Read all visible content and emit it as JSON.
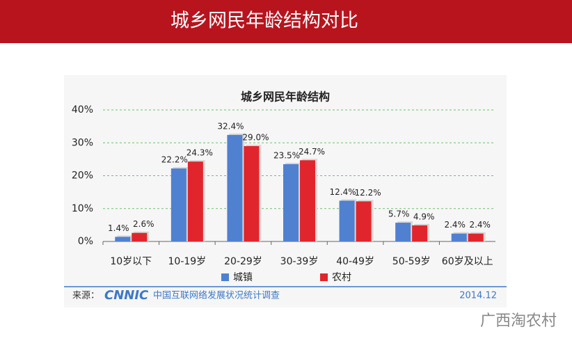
{
  "header": {
    "title": "城乡网民年龄结构对比"
  },
  "chart_data": {
    "type": "bar",
    "title": "城乡网民年龄结构",
    "categories": [
      "10岁以下",
      "10-19岁",
      "20-29岁",
      "30-39岁",
      "40-49岁",
      "50-59岁",
      "60岁及以上"
    ],
    "series": [
      {
        "name": "城镇",
        "color": "#4f81d0",
        "values": [
          1.4,
          22.2,
          32.4,
          23.5,
          12.4,
          5.7,
          2.4
        ],
        "value_labels": [
          "1.4%",
          "22.2%",
          "32.4%",
          "23.5%",
          "12.4%",
          "5.7%",
          "2.4%"
        ]
      },
      {
        "name": "农村",
        "color": "#e0262c",
        "values": [
          2.6,
          24.3,
          29.0,
          24.7,
          12.2,
          4.9,
          2.4
        ],
        "value_labels": [
          "2.6%",
          "24.3%",
          "29.0%",
          "24.7%",
          "12.2%",
          "4.9%",
          "2.4%"
        ]
      }
    ],
    "ylim": [
      0,
      40
    ],
    "yticks": [
      {
        "value": 0,
        "label": "0%"
      },
      {
        "value": 10,
        "label": "10%"
      },
      {
        "value": 20,
        "label": "20%"
      },
      {
        "value": 30,
        "label": "30%"
      },
      {
        "value": 40,
        "label": "40%"
      }
    ],
    "grid": true
  },
  "footer": {
    "source": "来源：",
    "logo": "CNNIC",
    "survey": "中国互联网络发展状况统计调查",
    "date": "2014.12"
  },
  "watermark": "广西淘农村"
}
